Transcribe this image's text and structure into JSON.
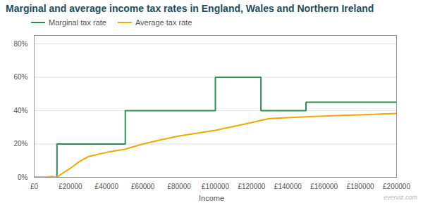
{
  "chart_data": {
    "type": "line",
    "title": "Marginal and average income tax rates in England, Wales and Northern Ireland",
    "x_label": "Income",
    "annotations": [
      "everviz.com"
    ],
    "series": [
      {
        "name": "Marginal tax rate",
        "color": "#2e8b5a",
        "x": [
          0,
          12570,
          12570,
          50270,
          50270,
          100000,
          100000,
          125140,
          125140,
          150000,
          150000,
          200000
        ],
        "values": [
          0,
          0,
          0.2,
          0.2,
          0.4,
          0.4,
          0.6,
          0.6,
          0.4,
          0.4,
          0.45,
          0.45
        ]
      },
      {
        "name": "Average tax rate",
        "color": "#f0a800",
        "x": [
          0,
          5000,
          10000,
          12570,
          15000,
          20000,
          25000,
          30000,
          40000,
          50000,
          60000,
          70000,
          80000,
          90000,
          100000,
          110000,
          120000,
          125140,
          130000,
          140000,
          150000,
          160000,
          170000,
          180000,
          190000,
          200000
        ],
        "values": [
          0.0,
          0.0,
          0.005,
          0.0,
          0.02,
          0.055,
          0.095,
          0.125,
          0.15,
          0.168,
          0.2,
          0.225,
          0.248,
          0.265,
          0.282,
          0.305,
          0.328,
          0.342,
          0.352,
          0.358,
          0.363,
          0.367,
          0.371,
          0.375,
          0.379,
          0.383
        ]
      }
    ],
    "xlim": [
      0,
      200000
    ],
    "xticks": [
      {
        "value": 0,
        "label": "£0"
      },
      {
        "value": 20000,
        "label": "£20000"
      },
      {
        "value": 40000,
        "label": "£40000"
      },
      {
        "value": 60000,
        "label": "£60000"
      },
      {
        "value": 80000,
        "label": "£80000"
      },
      {
        "value": 100000,
        "label": "£100000"
      },
      {
        "value": 120000,
        "label": "£120000"
      },
      {
        "value": 140000,
        "label": "£140000"
      },
      {
        "value": 160000,
        "label": "£160000"
      },
      {
        "value": 180000,
        "label": "£180000"
      },
      {
        "value": 200000,
        "label": "£200000"
      }
    ],
    "ylim": [
      0,
      0.85
    ],
    "yticks": [
      {
        "value": 0,
        "label": "0%"
      },
      {
        "value": 0.2,
        "label": "20%"
      },
      {
        "value": 0.4,
        "label": "40%"
      },
      {
        "value": 0.6,
        "label": "60%"
      },
      {
        "value": 0.8,
        "label": "80%"
      }
    ],
    "grid": "y",
    "legend": "top-left"
  }
}
